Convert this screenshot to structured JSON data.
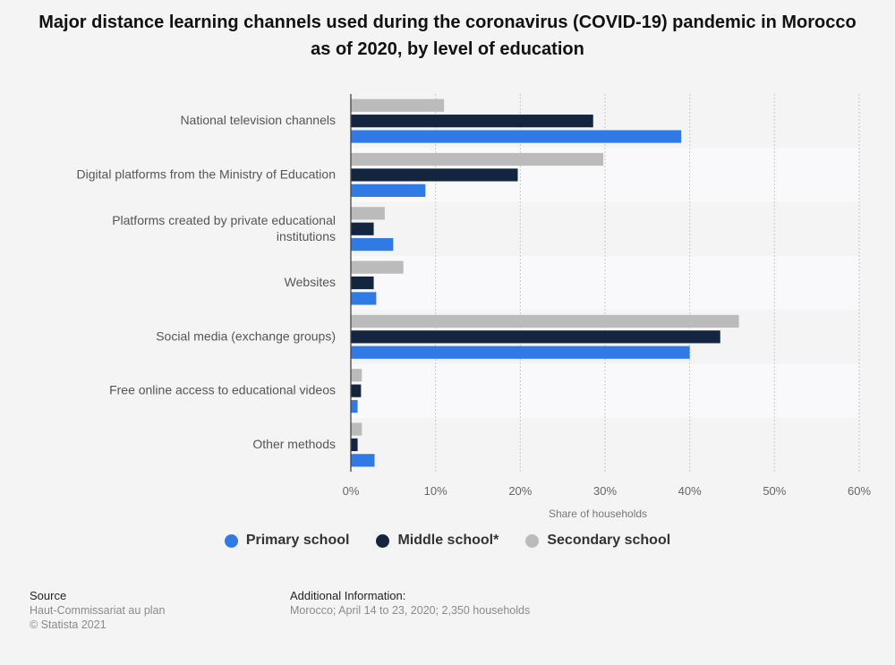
{
  "chart_data": {
    "type": "bar",
    "orientation": "horizontal",
    "title": "Major distance learning channels used during the coronavirus (COVID-19) pandemic in Morocco as of 2020, by level of education",
    "xlabel": "Share of households",
    "ylabel": "",
    "xlim": [
      0,
      60
    ],
    "x_ticks": [
      "0%",
      "10%",
      "20%",
      "30%",
      "40%",
      "50%",
      "60%"
    ],
    "grid": true,
    "legend_position": "bottom",
    "categories": [
      [
        "National television channels"
      ],
      [
        "Digital platforms from the Ministry of Education"
      ],
      [
        "Platforms created by private educational",
        "institutions"
      ],
      [
        "Websites"
      ],
      [
        "Social media (exchange groups)"
      ],
      [
        "Free online access to educational videos"
      ],
      [
        "Other methods"
      ]
    ],
    "series": [
      {
        "name": "Secondary school",
        "color": "#bbbbbb",
        "values": [
          11,
          29.8,
          4,
          6.2,
          45.8,
          1.3,
          1.3
        ]
      },
      {
        "name": "Middle school*",
        "color": "#14263f",
        "values": [
          28.6,
          19.7,
          2.7,
          2.7,
          43.6,
          1.2,
          0.8
        ]
      },
      {
        "name": "Primary school",
        "color": "#2f7ae5",
        "values": [
          39,
          8.8,
          5,
          3,
          40,
          0.8,
          2.8
        ]
      }
    ]
  },
  "legend": {
    "primary": "Primary school",
    "middle": "Middle school*",
    "secondary": "Secondary school"
  },
  "footer": {
    "source_heading": "Source",
    "source_line1": "Haut-Commissariat au plan",
    "source_line2": "© Statista 2021",
    "info_heading": "Additional Information:",
    "info_text": "Morocco; April 14 to 23, 2020; 2,350 households"
  }
}
